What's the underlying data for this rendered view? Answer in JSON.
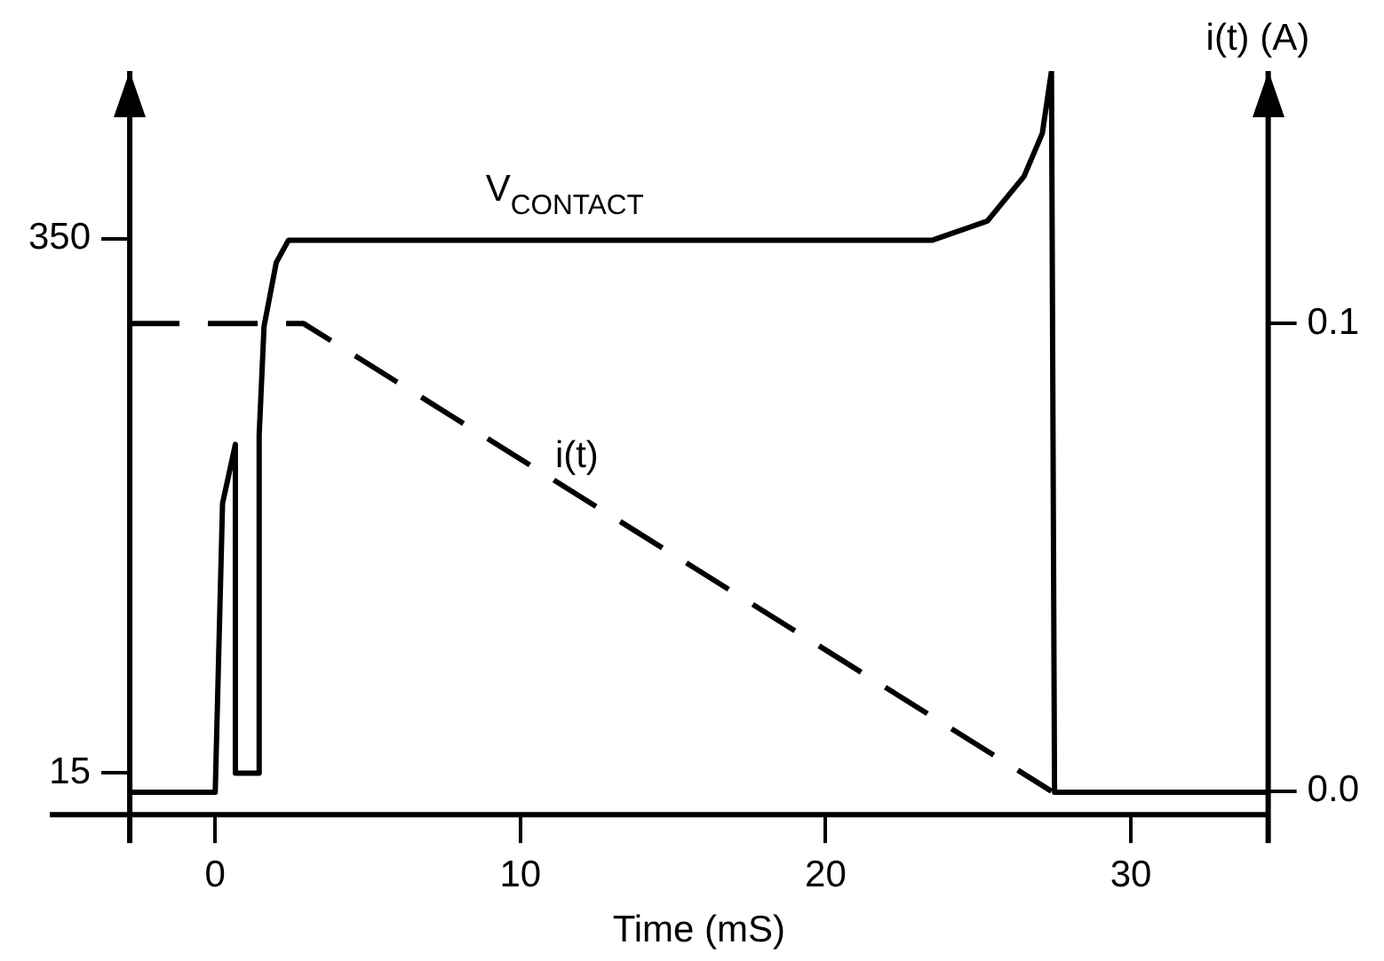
{
  "chart_data": {
    "type": "line",
    "xlabel": "Time (mS)",
    "y2label": "i(t) (A)",
    "xlim": [
      -2.8,
      34.5
    ],
    "xticks": [
      0,
      10,
      20,
      30
    ],
    "ylim": [
      -11,
      455
    ],
    "yticks": [
      15,
      350
    ],
    "y2lim": [
      -0.005,
      0.154
    ],
    "y2ticks": [
      {
        "value": 0,
        "label": "0.0"
      },
      0.1
    ],
    "grid": false,
    "legend": false,
    "marker": "none",
    "series": [
      {
        "name": "V$_{CONTACT}$",
        "color": "#000000",
        "line_style": "solid",
        "x": [
          -2.8,
          0,
          0.24,
          0.66,
          0.66,
          1.44,
          1.44,
          1.6,
          2,
          2.4,
          2.75,
          23.5,
          25.3,
          26.5,
          27.1,
          27.4,
          27.5,
          34.5
        ],
        "values": [
          3,
          3,
          184,
          221,
          15,
          15,
          227,
          295,
          335,
          349,
          349,
          349,
          361,
          389,
          416,
          455,
          3,
          3
        ]
      },
      {
        "name": "i(t)",
        "color": "#000000",
        "line_style": "dashed",
        "axis": "y2",
        "x": [
          -2.8,
          2.9,
          27.4
        ],
        "values": [
          0.1,
          0.1,
          0
        ]
      }
    ]
  }
}
